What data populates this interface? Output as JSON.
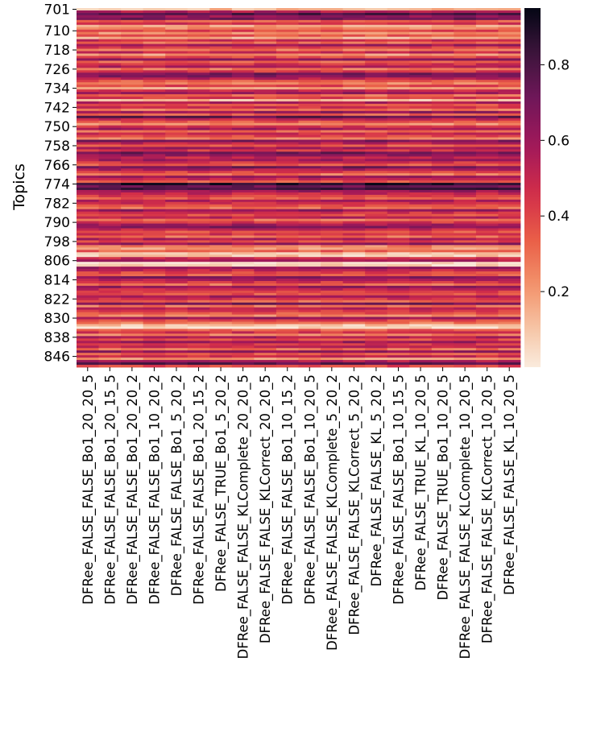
{
  "chart_data": {
    "type": "heatmap",
    "title": "",
    "xlabel": "",
    "ylabel": "Topics",
    "rows": {
      "start": 701,
      "end": 850,
      "tick_labels": [
        "701",
        "710",
        "718",
        "726",
        "734",
        "742",
        "750",
        "758",
        "766",
        "774",
        "782",
        "790",
        "798",
        "806",
        "814",
        "822",
        "830",
        "838",
        "846"
      ]
    },
    "columns": [
      "DFRee_FALSE_FALSE_Bo1_20_20_5",
      "DFRee_FALSE_FALSE_Bo1_20_15_5",
      "DFRee_FALSE_FALSE_Bo1_20_20_2",
      "DFRee_FALSE_FALSE_Bo1_10_20_2",
      "DFRee_FALSE_FALSE_Bo1_5_20_2",
      "DFRee_FALSE_FALSE_Bo1_20_15_2",
      "DFRee_FALSE_TRUE_Bo1_5_20_2",
      "DFRee_FALSE_FALSE_KLComplete_20_20_5",
      "DFRee_FALSE_FALSE_KLCorrect_20_20_5",
      "DFRee_FALSE_FALSE_Bo1_10_15_2",
      "DFRee_FALSE_FALSE_Bo1_10_20_5",
      "DFRee_FALSE_FALSE_KLComplete_5_20_2",
      "DFRee_FALSE_FALSE_KLCorrect_5_20_2",
      "DFRee_FALSE_FALSE_KL_5_20_2",
      "DFRee_FALSE_FALSE_Bo1_10_15_5",
      "DFRee_FALSE_TRUE_KL_10_20_5",
      "DFRee_FALSE_TRUE_Bo1_10_20_5",
      "DFRee_FALSE_FALSE_KLComplete_10_20_5",
      "DFRee_FALSE_FALSE_KLCorrect_10_20_5",
      "DFRee_FALSE_FALSE_KL_10_20_5"
    ],
    "row_base_values": [
      0.12,
      0.55,
      0.78,
      0.62,
      0.7,
      0.34,
      0.45,
      0.18,
      0.25,
      0.4,
      0.22,
      0.35,
      0.15,
      0.48,
      0.3,
      0.58,
      0.42,
      0.27,
      0.5,
      0.2,
      0.38,
      0.62,
      0.33,
      0.46,
      0.55,
      0.28,
      0.44,
      0.7,
      0.66,
      0.52,
      0.35,
      0.25,
      0.4,
      0.18,
      0.48,
      0.6,
      0.3,
      0.42,
      0.12,
      0.55,
      0.38,
      0.46,
      0.28,
      0.62,
      0.33,
      0.75,
      0.5,
      0.36,
      0.22,
      0.44,
      0.58,
      0.3,
      0.48,
      0.4,
      0.26,
      0.68,
      0.52,
      0.35,
      0.6,
      0.44,
      0.72,
      0.62,
      0.5,
      0.58,
      0.45,
      0.35,
      0.7,
      0.55,
      0.4,
      0.28,
      0.62,
      0.48,
      0.36,
      0.88,
      0.72,
      0.8,
      0.6,
      0.5,
      0.42,
      0.35,
      0.55,
      0.48,
      0.4,
      0.3,
      0.62,
      0.45,
      0.38,
      0.52,
      0.28,
      0.44,
      0.58,
      0.66,
      0.5,
      0.36,
      0.46,
      0.3,
      0.55,
      0.4,
      0.62,
      0.25,
      0.2,
      0.34,
      0.12,
      0.08,
      0.48,
      0.56,
      0.03,
      0.06,
      0.62,
      0.5,
      0.4,
      0.34,
      0.66,
      0.56,
      0.44,
      0.3,
      0.62,
      0.5,
      0.42,
      0.36,
      0.58,
      0.46,
      0.32,
      0.7,
      0.28,
      0.52,
      0.44,
      0.36,
      0.24,
      0.6,
      0.4,
      0.28,
      0.1,
      0.04,
      0.34,
      0.46,
      0.26,
      0.56,
      0.38,
      0.6,
      0.44,
      0.5,
      0.3,
      0.62,
      0.36,
      0.48,
      0.2,
      0.56,
      0.78,
      0.4
    ],
    "colorbar": {
      "min": 0.0,
      "max": 0.95,
      "ticks": [
        0.2,
        0.4,
        0.6,
        0.8
      ],
      "tick_labels": [
        "0.2",
        "0.4",
        "0.6",
        "0.8"
      ],
      "colormap": "rocket_r"
    }
  }
}
